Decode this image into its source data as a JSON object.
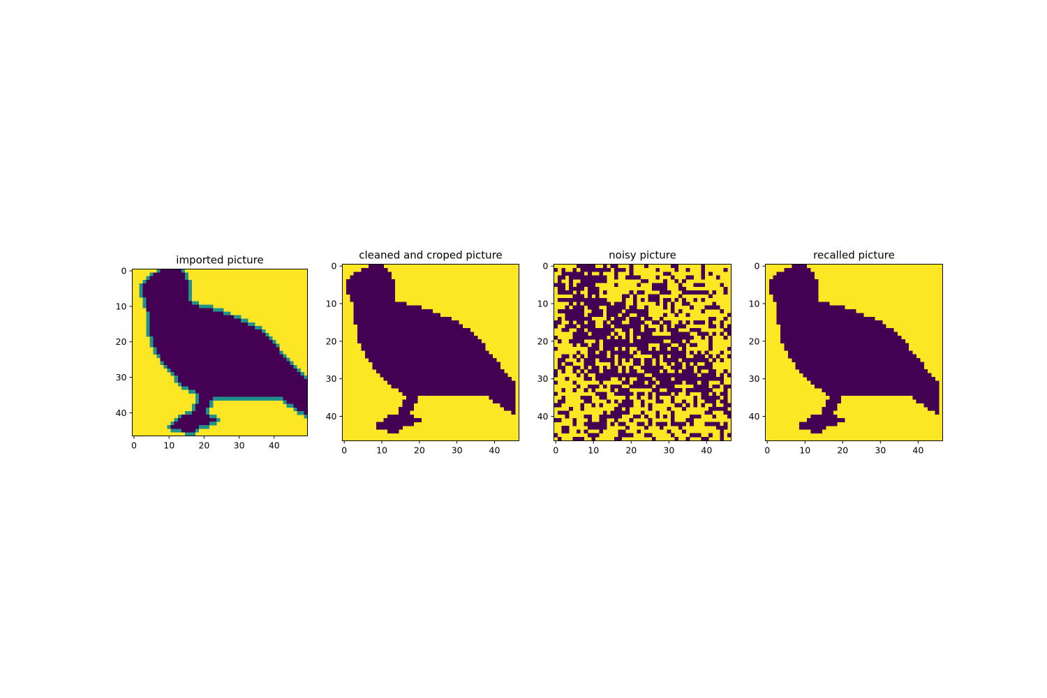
{
  "figure": {
    "colormap": {
      "low": "#440154",
      "mid": "#21918c",
      "high": "#fde725"
    }
  },
  "chart_data": [
    {
      "type": "heatmap",
      "title": "imported picture",
      "subject": "bird silhouette",
      "shape": [
        47,
        50
      ],
      "value_range": [
        0,
        1
      ],
      "xlabel": "",
      "ylabel": "",
      "xticks": [
        0,
        10,
        20,
        30,
        40
      ],
      "yticks": [
        0,
        10,
        20,
        30,
        40
      ],
      "xlim": [
        -0.5,
        49.5
      ],
      "ylim": [
        46.5,
        -0.5
      ],
      "smooth_edges": true
    },
    {
      "type": "heatmap",
      "title": "cleaned and croped picture",
      "subject": "bird silhouette (binarized, cropped)",
      "shape": [
        47,
        47
      ],
      "value_range": [
        0,
        1
      ],
      "xlabel": "",
      "ylabel": "",
      "xticks": [
        0,
        10,
        20,
        30,
        40
      ],
      "yticks": [
        0,
        10,
        20,
        30,
        40
      ],
      "xlim": [
        -0.5,
        46.5
      ],
      "ylim": [
        46.5,
        -0.5
      ]
    },
    {
      "type": "heatmap",
      "title": "noisy picture",
      "subject": "bird silhouette with random pixel flips",
      "shape": [
        47,
        47
      ],
      "value_range": [
        0,
        1
      ],
      "noise_fraction": 0.3,
      "xlabel": "",
      "ylabel": "",
      "xticks": [
        0,
        10,
        20,
        30,
        40
      ],
      "yticks": [
        0,
        10,
        20,
        30,
        40
      ],
      "xlim": [
        -0.5,
        46.5
      ],
      "ylim": [
        46.5,
        -0.5
      ]
    },
    {
      "type": "heatmap",
      "title": "recalled picture",
      "subject": "bird silhouette (restored)",
      "shape": [
        47,
        47
      ],
      "value_range": [
        0,
        1
      ],
      "xlabel": "",
      "ylabel": "",
      "xticks": [
        0,
        10,
        20,
        30,
        40
      ],
      "yticks": [
        0,
        10,
        20,
        30,
        40
      ],
      "xlim": [
        -0.5,
        46.5
      ],
      "ylim": [
        46.5,
        -0.5
      ]
    }
  ]
}
